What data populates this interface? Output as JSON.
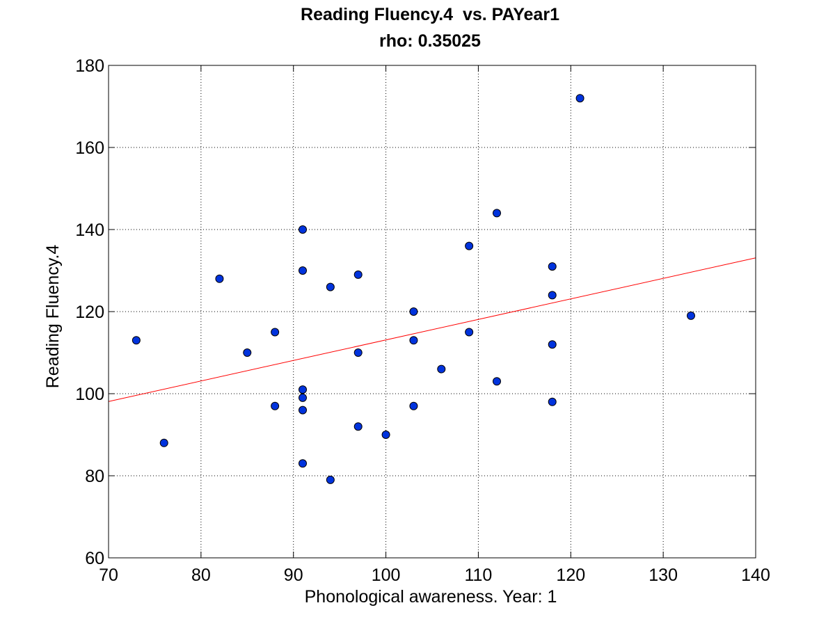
{
  "chart_data": {
    "type": "scatter",
    "title": "Reading Fluency.4  vs. PAYear1",
    "subtitle": "rho: 0.35025",
    "xlabel": "Phonological awareness. Year: 1",
    "ylabel": "Reading Fluency.4",
    "xlim": [
      70,
      140
    ],
    "ylim": [
      60,
      180
    ],
    "xticks": [
      70,
      80,
      90,
      100,
      110,
      120,
      130,
      140
    ],
    "yticks": [
      60,
      80,
      100,
      120,
      140,
      160,
      180
    ],
    "grid": true,
    "grid_style": "dotted",
    "marker_color": "#0033dd",
    "marker_edge_color": "#000000",
    "fit_line_color": "#ff0000",
    "points": [
      {
        "x": 73,
        "y": 113
      },
      {
        "x": 76,
        "y": 88
      },
      {
        "x": 82,
        "y": 128
      },
      {
        "x": 85,
        "y": 110
      },
      {
        "x": 88,
        "y": 115
      },
      {
        "x": 88,
        "y": 97
      },
      {
        "x": 91,
        "y": 140
      },
      {
        "x": 91,
        "y": 130
      },
      {
        "x": 91,
        "y": 101
      },
      {
        "x": 91,
        "y": 99
      },
      {
        "x": 91,
        "y": 96
      },
      {
        "x": 91,
        "y": 83
      },
      {
        "x": 94,
        "y": 126
      },
      {
        "x": 94,
        "y": 79
      },
      {
        "x": 97,
        "y": 129
      },
      {
        "x": 97,
        "y": 110
      },
      {
        "x": 97,
        "y": 92
      },
      {
        "x": 100,
        "y": 90
      },
      {
        "x": 103,
        "y": 120
      },
      {
        "x": 103,
        "y": 113
      },
      {
        "x": 103,
        "y": 97
      },
      {
        "x": 106,
        "y": 106
      },
      {
        "x": 109,
        "y": 136
      },
      {
        "x": 109,
        "y": 115
      },
      {
        "x": 112,
        "y": 144
      },
      {
        "x": 112,
        "y": 103
      },
      {
        "x": 118,
        "y": 131
      },
      {
        "x": 118,
        "y": 124
      },
      {
        "x": 118,
        "y": 112
      },
      {
        "x": 118,
        "y": 98
      },
      {
        "x": 121,
        "y": 172
      },
      {
        "x": 133,
        "y": 119
      }
    ],
    "fit_line": {
      "x": [
        70,
        140
      ],
      "y": [
        98.1,
        133.1
      ]
    }
  }
}
